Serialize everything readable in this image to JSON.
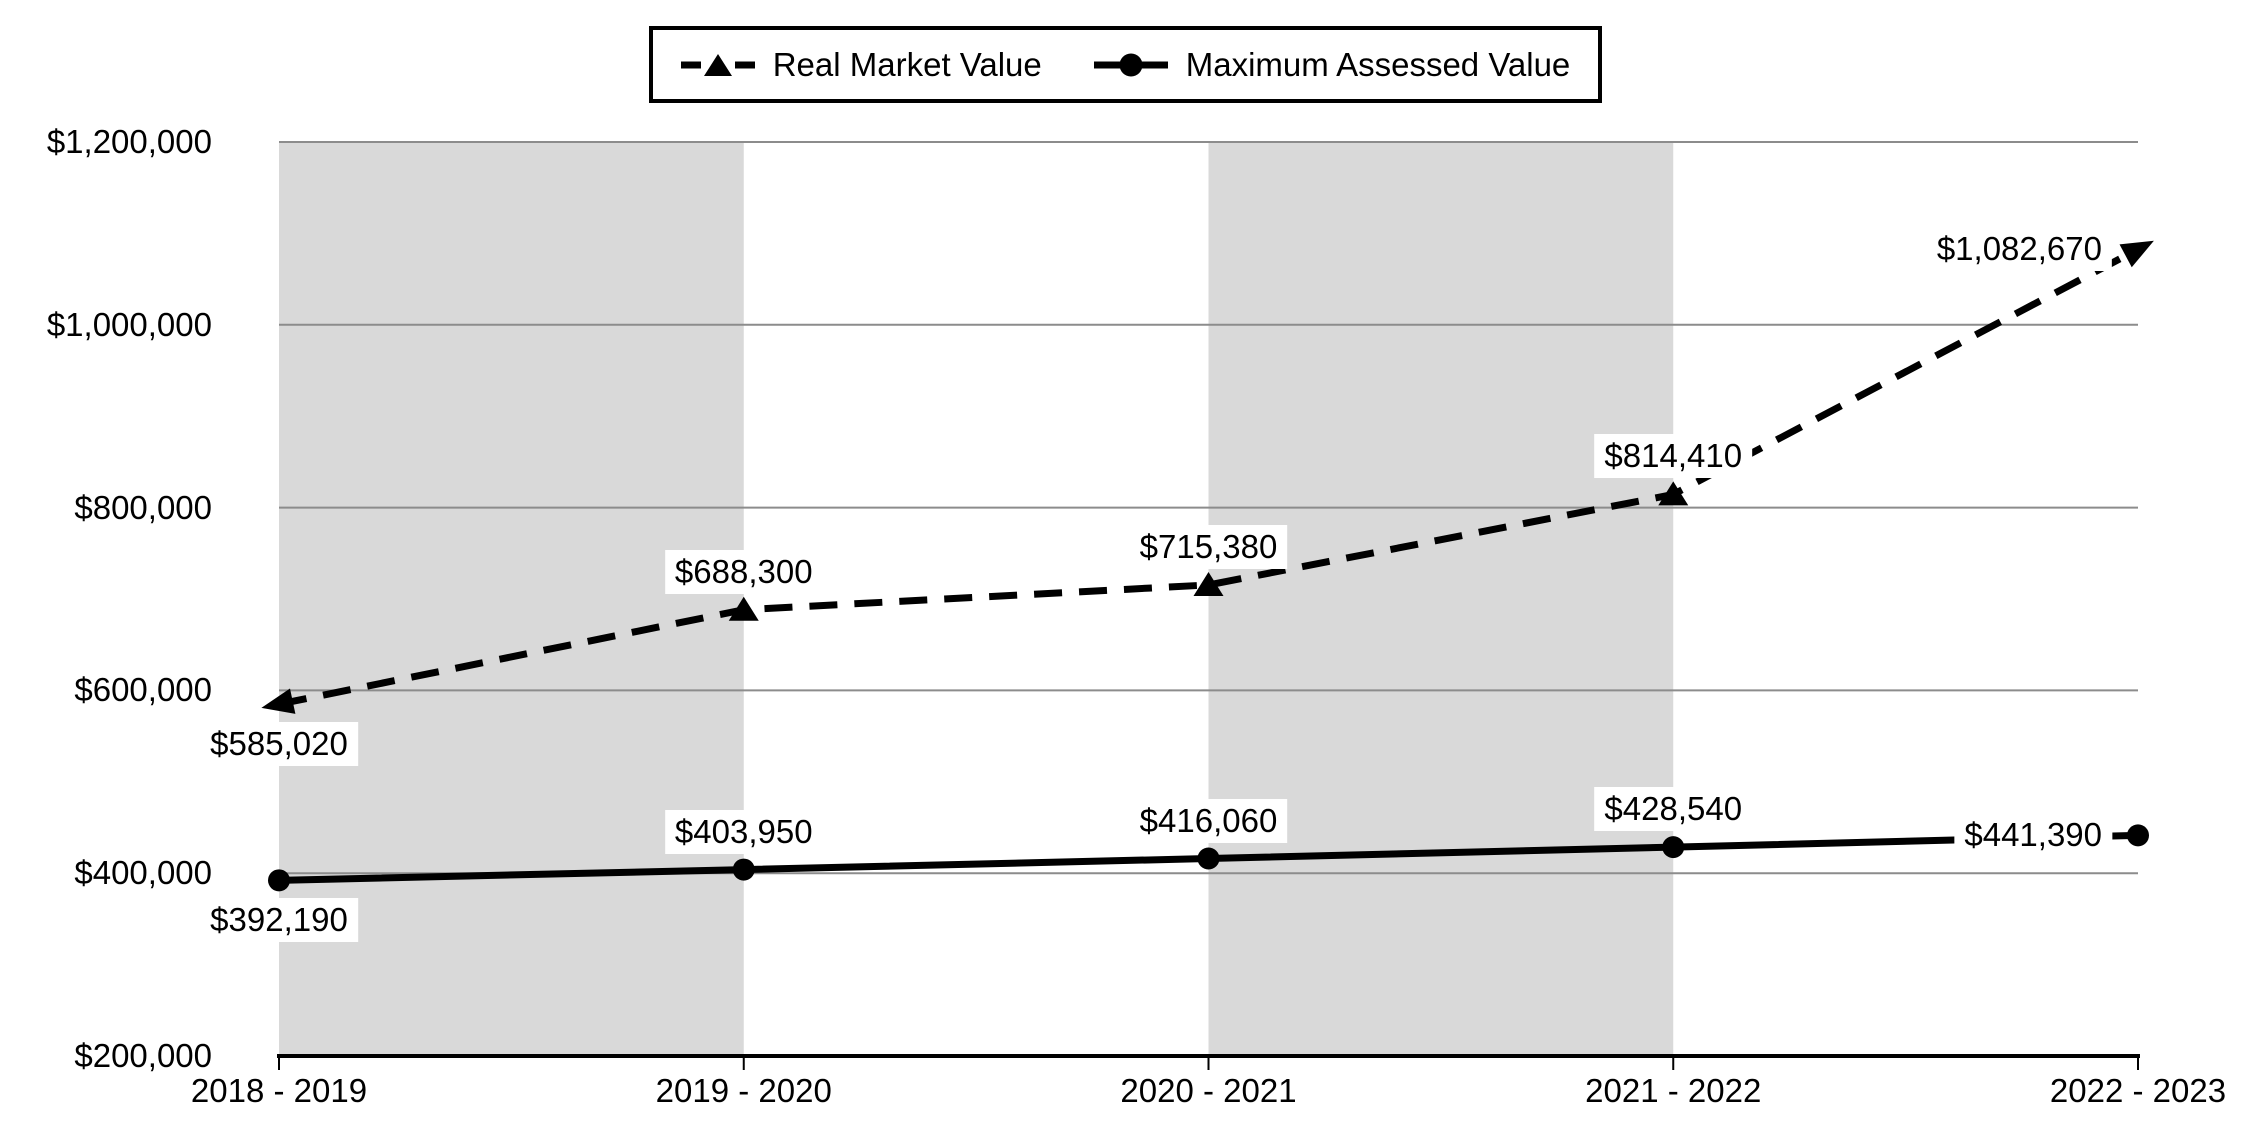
{
  "legend": {
    "items": [
      {
        "label": "Real Market Value"
      },
      {
        "label": "Maximum Assessed Value"
      }
    ]
  },
  "chart_data": {
    "type": "line",
    "title": "",
    "categories": [
      "2018 - 2019",
      "2019 - 2020",
      "2020 - 2021",
      "2021 - 2022",
      "2022 - 2023"
    ],
    "series": [
      {
        "name": "Real Market Value",
        "line_style": "dashed",
        "marker": "triangle",
        "color": "#000000",
        "values": [
          585020,
          688300,
          715380,
          814410,
          1082670
        ],
        "data_labels": [
          "$585,020",
          "$688,300",
          "$715,380",
          "$814,410",
          "$1,082,670"
        ]
      },
      {
        "name": "Maximum Assessed Value",
        "line_style": "solid",
        "marker": "circle",
        "color": "#000000",
        "values": [
          392190,
          403950,
          416060,
          428540,
          441390
        ],
        "data_labels": [
          "$392,190",
          "$403,950",
          "$416,060",
          "$428,540",
          "$441,390"
        ]
      }
    ],
    "y_axis": {
      "min": 200000,
      "max": 1200000,
      "step": 200000,
      "tick_labels": [
        "$200,000",
        "$400,000",
        "$600,000",
        "$800,000",
        "$1,000,000",
        "$1,200,000"
      ]
    },
    "x_axis": {
      "tick_labels": [
        "2018 - 2019",
        "2019 - 2020",
        "2020 - 2021",
        "2021 - 2022",
        "2022 - 2023"
      ]
    },
    "legend_position": "top",
    "grid": true,
    "plot_bands": {
      "color": "#d9d9d9",
      "intervals": [
        [
          0,
          1
        ],
        [
          2,
          3
        ]
      ]
    },
    "colors": {
      "series": "#000000",
      "gridline": "#8c8c8c",
      "band": "#d9d9d9",
      "axis": "#000000",
      "label_bg": "#ffffff"
    }
  }
}
